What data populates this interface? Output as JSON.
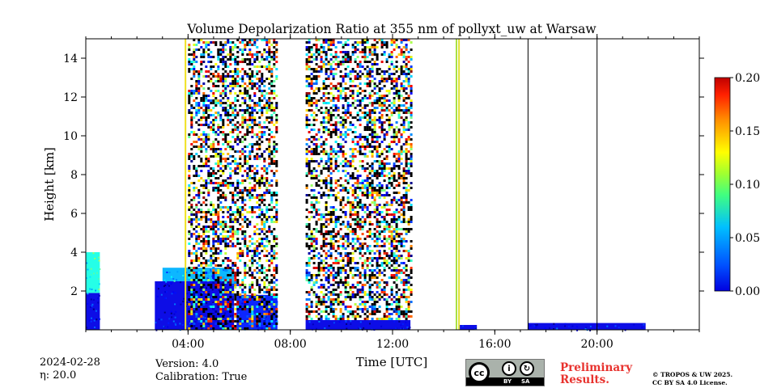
{
  "chart_data": {
    "type": "heatmap",
    "title": "Volume Depolarization Ratio at 355 nm of pollyxt_uw at Warsaw",
    "xlabel": "Time [UTC]",
    "ylabel": "Height [km]",
    "xlim": [
      0,
      24
    ],
    "ylim": [
      0,
      15
    ],
    "x_ticks": [
      {
        "value": 4,
        "label": "04:00"
      },
      {
        "value": 8,
        "label": "08:00"
      },
      {
        "value": 12,
        "label": "12:00"
      },
      {
        "value": 16,
        "label": "16:00"
      },
      {
        "value": 20,
        "label": "20:00"
      }
    ],
    "y_ticks": [
      {
        "value": 2,
        "label": "2"
      },
      {
        "value": 4,
        "label": "4"
      },
      {
        "value": 6,
        "label": "6"
      },
      {
        "value": 8,
        "label": "8"
      },
      {
        "value": 10,
        "label": "10"
      },
      {
        "value": 12,
        "label": "12"
      },
      {
        "value": 14,
        "label": "14"
      }
    ],
    "colorbar": {
      "range": [
        0.0,
        0.2
      ],
      "ticks": [
        "0.00",
        "0.05",
        "0.10",
        "0.15",
        "0.20"
      ],
      "colormap": "jet"
    },
    "features": [
      {
        "name": "boundary-layer-early",
        "t_start": 0.0,
        "t_end": 0.55,
        "h_top": 1.9,
        "value": 0.02
      },
      {
        "name": "aerosol-patch-early",
        "t_start": 0.0,
        "t_end": 0.55,
        "h_bottom": 1.9,
        "h_top": 4.0,
        "value": 0.08
      },
      {
        "name": "boundary-layer-morning",
        "t_start": 2.7,
        "t_end": 5.8,
        "h_top": 2.5,
        "value": 0.02
      },
      {
        "name": "aerosol-layer-morning",
        "t_start": 3.0,
        "t_end": 5.8,
        "h_bottom": 2.5,
        "h_top": 3.2,
        "value": 0.06
      },
      {
        "name": "boundary-layer-midmorning",
        "t_start": 5.9,
        "t_end": 7.5,
        "h_top": 1.8,
        "value": 0.03
      },
      {
        "name": "noise-region-morning",
        "t_start": 4.0,
        "t_end": 7.5,
        "h_bottom": 0.0,
        "h_top": 15.0,
        "value": "noise"
      },
      {
        "name": "noise-region-midday",
        "t_start": 8.6,
        "t_end": 12.7,
        "h_bottom": 0.5,
        "h_top": 15.0,
        "value": "noise"
      },
      {
        "name": "surface-layer-midday",
        "t_start": 8.6,
        "t_end": 12.7,
        "h_top": 0.5,
        "value": 0.02
      },
      {
        "name": "surface-layer-afternoon",
        "t_start": 14.6,
        "t_end": 15.3,
        "h_top": 0.25,
        "value": 0.02
      },
      {
        "name": "surface-layer-evening",
        "t_start": 17.3,
        "t_end": 21.9,
        "h_top": 0.35,
        "value": 0.02
      }
    ],
    "vertical_lines": [
      {
        "t": 3.9,
        "color": "#f0e020"
      },
      {
        "t": 14.5,
        "color": "#a8e040"
      },
      {
        "t": 14.6,
        "color": "#e0e030"
      },
      {
        "t": 17.3,
        "color": "#000000"
      },
      {
        "t": 20.0,
        "color": "#000000"
      }
    ]
  },
  "footer": {
    "date": "2024-02-28",
    "eta": "η: 20.0",
    "version": "Version: 4.0",
    "calibration": "Calibration: True",
    "preliminary_line1": "Preliminary",
    "preliminary_line2": "Results.",
    "copyright_line1": "© TROPOS & UW 2025.",
    "copyright_line2": "CC BY SA 4.0 License.",
    "cc_logo_text": "cc",
    "cc_by": "BY",
    "cc_sa": "SA"
  }
}
